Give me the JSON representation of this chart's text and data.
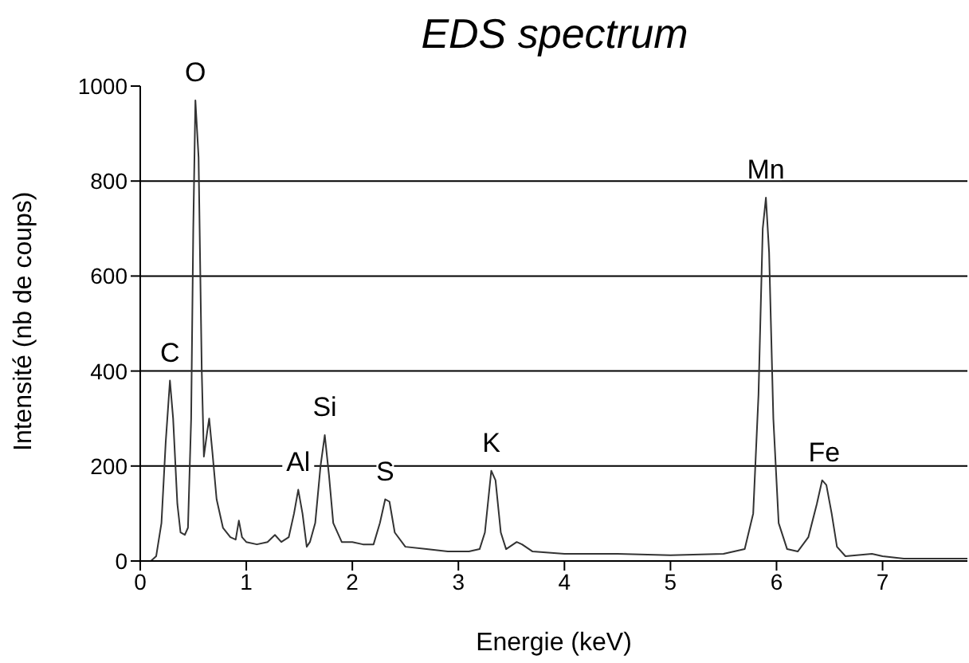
{
  "chart_data": {
    "type": "line",
    "title": "EDS spectrum",
    "xlabel": "Energie (keV)",
    "ylabel": "Intensité (nb de coups)",
    "x": [
      0.1,
      0.15,
      0.2,
      0.24,
      0.28,
      0.31,
      0.35,
      0.38,
      0.42,
      0.45,
      0.48,
      0.5,
      0.52,
      0.55,
      0.58,
      0.6,
      0.63,
      0.65,
      0.68,
      0.72,
      0.78,
      0.85,
      0.9,
      0.93,
      0.96,
      1.0,
      1.1,
      1.2,
      1.27,
      1.33,
      1.4,
      1.45,
      1.49,
      1.53,
      1.57,
      1.6,
      1.65,
      1.7,
      1.74,
      1.78,
      1.82,
      1.9,
      2.0,
      2.1,
      2.2,
      2.26,
      2.31,
      2.35,
      2.4,
      2.5,
      2.7,
      2.9,
      3.1,
      3.2,
      3.25,
      3.31,
      3.35,
      3.4,
      3.45,
      3.55,
      3.6,
      3.7,
      4.0,
      4.5,
      5.0,
      5.5,
      5.7,
      5.78,
      5.83,
      5.87,
      5.9,
      5.93,
      5.97,
      6.02,
      6.1,
      6.2,
      6.3,
      6.38,
      6.43,
      6.47,
      6.52,
      6.57,
      6.65,
      6.9,
      7.0,
      7.2,
      7.5,
      7.8
    ],
    "series": [
      {
        "color": "#333333",
        "values": [
          0,
          10,
          80,
          250,
          380,
          300,
          120,
          60,
          55,
          70,
          300,
          700,
          970,
          850,
          400,
          220,
          270,
          300,
          230,
          130,
          70,
          50,
          45,
          85,
          50,
          40,
          35,
          40,
          55,
          40,
          50,
          100,
          150,
          100,
          30,
          40,
          80,
          200,
          265,
          180,
          80,
          40,
          40,
          35,
          35,
          80,
          130,
          125,
          60,
          30,
          25,
          20,
          20,
          25,
          60,
          190,
          170,
          60,
          25,
          40,
          35,
          20,
          15,
          15,
          12,
          15,
          25,
          100,
          350,
          700,
          765,
          650,
          300,
          80,
          25,
          20,
          50,
          120,
          170,
          160,
          100,
          30,
          10,
          15,
          10,
          5,
          5,
          5
        ]
      }
    ],
    "xlim": [
      0,
      7.8
    ],
    "xticks": [
      0,
      1,
      2,
      3,
      4,
      5,
      6,
      7
    ],
    "ylim": [
      0,
      1000
    ],
    "yticks": [
      0,
      200,
      400,
      600,
      800,
      1000
    ],
    "grid": "y",
    "annotations": [
      {
        "text": "C",
        "x": 0.28,
        "y": 380
      },
      {
        "text": "O",
        "x": 0.52,
        "y": 970
      },
      {
        "text": "Al",
        "x": 1.49,
        "y": 150
      },
      {
        "text": "Si",
        "x": 1.74,
        "y": 265
      },
      {
        "text": "S",
        "x": 2.31,
        "y": 130
      },
      {
        "text": "K",
        "x": 3.31,
        "y": 190
      },
      {
        "text": "Mn",
        "x": 5.9,
        "y": 765
      },
      {
        "text": "Fe",
        "x": 6.45,
        "y": 170
      }
    ]
  }
}
